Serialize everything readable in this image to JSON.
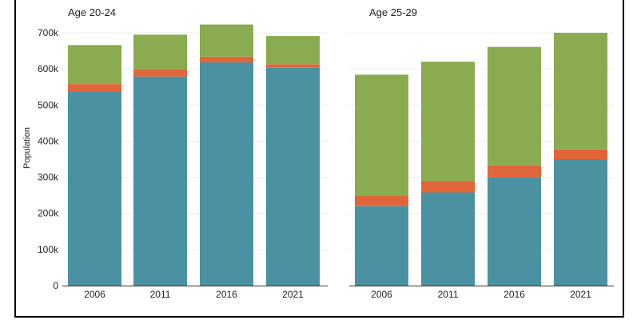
{
  "chart_data": [
    {
      "type": "bar",
      "stacked": true,
      "title": "Age 20-24",
      "ylabel": "Population",
      "ylim": [
        0,
        700000
      ],
      "yticks": [
        0,
        100000,
        200000,
        300000,
        400000,
        500000,
        600000,
        700000
      ],
      "ytick_labels": [
        "0",
        "100k",
        "200k",
        "300k",
        "400k",
        "500k",
        "600k",
        "700k"
      ],
      "categories": [
        "2006",
        "2011",
        "2016",
        "2021"
      ],
      "grid": true,
      "series": [
        {
          "color": "#4a91a2",
          "values": [
            538000,
            579000,
            618000,
            603000
          ]
        },
        {
          "color": "#e0663a",
          "values": [
            20000,
            20000,
            16000,
            10000
          ]
        },
        {
          "color": "#8aab4f",
          "values": [
            108000,
            96000,
            89000,
            78000
          ]
        }
      ]
    },
    {
      "type": "bar",
      "stacked": true,
      "title": "Age 25-29",
      "ylabel": "",
      "ylim": [
        0,
        700000
      ],
      "yticks": [
        0,
        100000,
        200000,
        300000,
        400000,
        500000,
        600000,
        700000
      ],
      "categories": [
        "2006",
        "2011",
        "2016",
        "2021"
      ],
      "grid": true,
      "series": [
        {
          "color": "#4a91a2",
          "values": [
            220000,
            258000,
            300000,
            350000
          ]
        },
        {
          "color": "#e0663a",
          "values": [
            30000,
            32000,
            33000,
            27000
          ]
        },
        {
          "color": "#8aab4f",
          "values": [
            334000,
            330000,
            328000,
            323000
          ]
        }
      ]
    }
  ]
}
